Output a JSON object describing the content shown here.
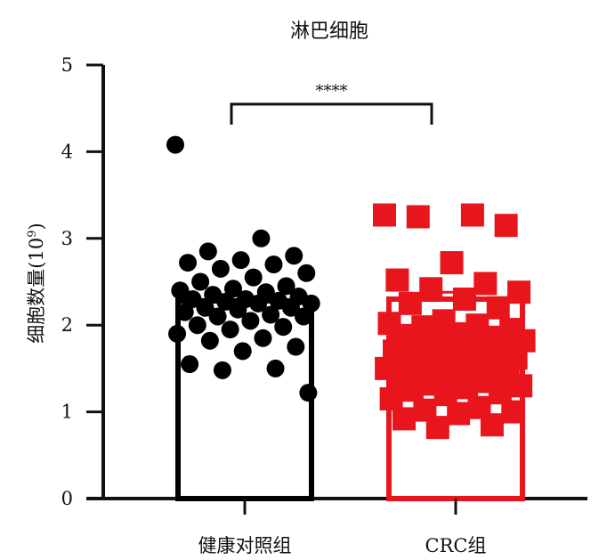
{
  "chart_data": {
    "type": "bar",
    "title": "淋巴细胞",
    "ylabel_main": "细胞数量(10",
    "ylabel_sup": "9",
    "ylabel_close": ")",
    "ylim": [
      0,
      5
    ],
    "yticks": [
      0,
      1,
      2,
      3,
      4,
      5
    ],
    "categories": [
      "健康对照组",
      "CRC组"
    ],
    "bar_values": [
      2.28,
      2.3
    ],
    "error_upper": [
      null,
      2.38
    ],
    "significance": "****",
    "colors": [
      "#000000",
      "#e8161c"
    ],
    "bar_fill": [
      "#ffffff",
      "#ffffff"
    ],
    "marker_shapes": [
      "circle",
      "square"
    ],
    "points": [
      [
        4.08,
        3.0,
        2.85,
        2.8,
        2.75,
        2.72,
        2.7,
        2.65,
        2.6,
        2.55,
        2.5,
        2.45,
        2.42,
        2.4,
        2.38,
        2.35,
        2.33,
        2.3,
        2.3,
        2.28,
        2.27,
        2.25,
        2.25,
        2.2,
        2.2,
        2.18,
        2.15,
        2.12,
        2.1,
        2.1,
        2.05,
        2.0,
        1.98,
        1.95,
        1.9,
        1.85,
        1.82,
        1.75,
        1.7,
        1.55,
        1.5,
        1.48,
        1.22
      ],
      [
        3.27,
        3.27,
        3.25,
        3.15,
        2.72,
        2.52,
        2.48,
        2.42,
        2.38,
        2.3,
        2.25,
        2.2,
        2.05,
        2.02,
        2.0,
        1.98,
        1.95,
        1.9,
        1.88,
        1.86,
        1.85,
        1.82,
        1.8,
        1.78,
        1.75,
        1.72,
        1.7,
        1.68,
        1.65,
        1.62,
        1.6,
        1.58,
        1.55,
        1.53,
        1.5,
        1.48,
        1.45,
        1.42,
        1.4,
        1.38,
        1.35,
        1.32,
        1.3,
        1.28,
        1.25,
        1.22,
        1.2,
        1.15,
        1.05,
        1.02,
        1.0,
        0.98,
        0.92,
        0.85,
        0.82
      ]
    ]
  }
}
